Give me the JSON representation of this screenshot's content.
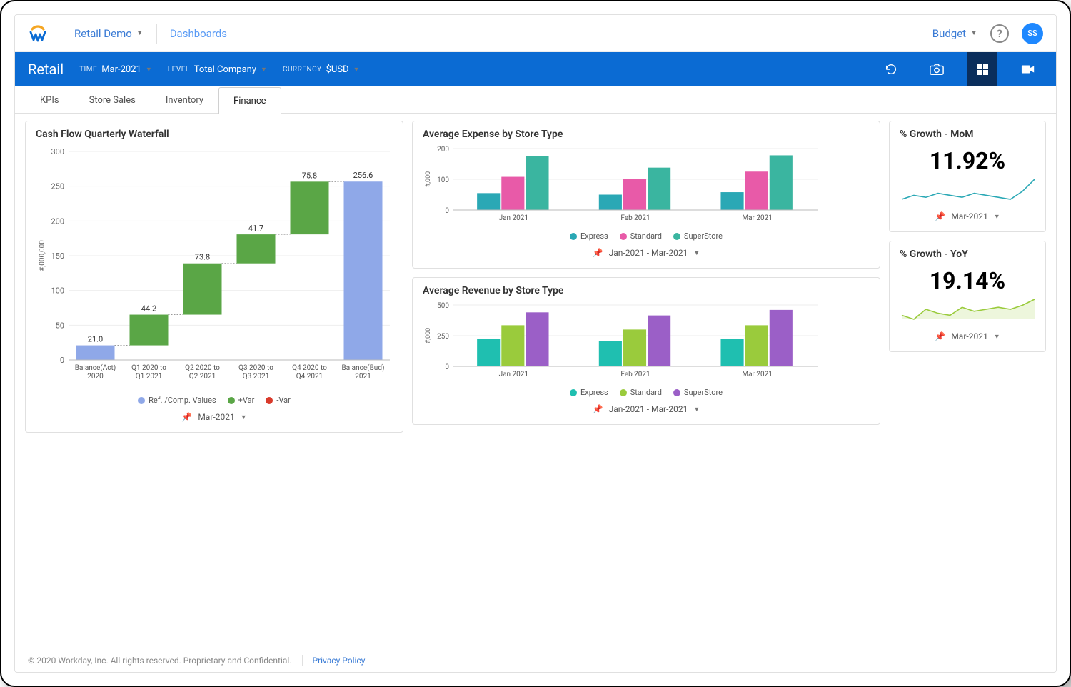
{
  "topbar": {
    "context_label": "Retail Demo",
    "breadcrumb": "Dashboards",
    "right_menu": "Budget",
    "avatar_initials": "SS"
  },
  "bluebar": {
    "title": "Retail",
    "time_label": "TIME",
    "time_value": "Mar-2021",
    "level_label": "LEVEL",
    "level_value": "Total Company",
    "currency_label": "CURRENCY",
    "currency_value": "$USD"
  },
  "tabs": [
    "KPIs",
    "Store Sales",
    "Inventory",
    "Finance"
  ],
  "active_tab": 3,
  "waterfall": {
    "title": "Cash Flow Quarterly Waterfall",
    "ylabel": "#,000,000",
    "ylim": [
      0,
      300
    ],
    "ytick_step": 50,
    "categories": [
      {
        "l1": "Balance(Act)",
        "l2": "2020"
      },
      {
        "l1": "Q1 2020 to",
        "l2": "Q1 2021"
      },
      {
        "l1": "Q2 2020 to",
        "l2": "Q2 2021"
      },
      {
        "l1": "Q3 2020 to",
        "l2": "Q3 2021"
      },
      {
        "l1": "Q4 2020 to",
        "l2": "Q4 2021"
      },
      {
        "l1": "Balance(Bud)",
        "l2": "2021"
      }
    ],
    "bars": [
      {
        "type": "ref",
        "start": 0,
        "end": 21.0,
        "label": "21.0"
      },
      {
        "type": "pos",
        "start": 21.0,
        "end": 65.2,
        "label": "44.2"
      },
      {
        "type": "pos",
        "start": 65.2,
        "end": 139.0,
        "label": "73.8"
      },
      {
        "type": "pos",
        "start": 139.0,
        "end": 180.7,
        "label": "41.7"
      },
      {
        "type": "pos",
        "start": 180.7,
        "end": 256.5,
        "label": "75.8"
      },
      {
        "type": "ref",
        "start": 0,
        "end": 256.6,
        "label": "256.6"
      }
    ],
    "colors": {
      "ref": "#8fa8e8",
      "pos": "#5aa646",
      "neg": "#d93a2b"
    },
    "legend": [
      {
        "label": "Ref. /Comp. Values",
        "color": "#8fa8e8"
      },
      {
        "label": "+Var",
        "color": "#5aa646"
      },
      {
        "label": "-Var",
        "color": "#d93a2b"
      }
    ],
    "pin": "Mar-2021"
  },
  "expense": {
    "title": "Average Expense by Store Type",
    "ylabel": "#,000",
    "ylim": [
      0,
      200
    ],
    "ytick_step": 100,
    "groups": [
      "Jan 2021",
      "Feb 2021",
      "Mar 2021"
    ],
    "series": [
      {
        "name": "Express",
        "color": "#2aa8b5",
        "values": [
          55,
          50,
          58
        ]
      },
      {
        "name": "Standard",
        "color": "#e85aa8",
        "values": [
          108,
          100,
          125
        ]
      },
      {
        "name": "SuperStore",
        "color": "#3ab5a0",
        "values": [
          175,
          138,
          178
        ]
      }
    ],
    "pin": "Jan-2021 - Mar-2021"
  },
  "revenue": {
    "title": "Average Revenue by Store Type",
    "ylabel": "#,000",
    "ylim": [
      0,
      500
    ],
    "ytick_step": 250,
    "groups": [
      "Jan 2021",
      "Feb 2021",
      "Mar 2021"
    ],
    "series": [
      {
        "name": "Express",
        "color": "#1fbfb0",
        "values": [
          225,
          205,
          225
        ]
      },
      {
        "name": "Standard",
        "color": "#9acb3c",
        "values": [
          335,
          300,
          335
        ]
      },
      {
        "name": "SuperStore",
        "color": "#9b5fc7",
        "values": [
          440,
          415,
          460
        ]
      }
    ],
    "pin": "Jan-2021 - Mar-2021"
  },
  "mom": {
    "title": "% Growth - MoM",
    "value": "11.92%",
    "spark_color": "#2aa8b5",
    "spark": [
      10,
      12,
      11,
      13,
      12,
      11,
      13,
      12,
      11,
      10,
      14,
      20
    ],
    "pin": "Mar-2021"
  },
  "yoy": {
    "title": "% Growth - YoY",
    "value": "19.14%",
    "spark_color": "#9acb3c",
    "spark": [
      8,
      6,
      11,
      9,
      8,
      12,
      10,
      11,
      12,
      11,
      13,
      16
    ],
    "pin": "Mar-2021"
  },
  "footer": {
    "copyright": "© 2020 Workday, Inc. All rights reserved. Proprietary and Confidential.",
    "privacy": "Privacy Policy"
  }
}
